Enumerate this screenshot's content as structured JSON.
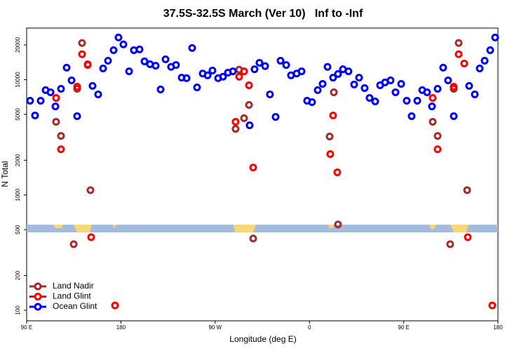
{
  "chart_data": {
    "type": "scatter",
    "title": "37.5S-32.5S March (Ver 10)   Inf to -Inf",
    "x_label": "Longitude (deg E)",
    "y_label": "N Total",
    "log_y": true,
    "legend": "bottom-left",
    "xlim": [
      90,
      540
    ],
    "ylim": [
      81,
      28000
    ],
    "xticks": [
      {
        "value": 90,
        "label": "90 E"
      },
      {
        "value": 180,
        "label": "180"
      },
      {
        "value": 270,
        "label": "90 W"
      },
      {
        "value": 360,
        "label": "0"
      },
      {
        "value": 450,
        "label": "90 E"
      },
      {
        "value": 540,
        "label": "180"
      }
    ],
    "yticks": [
      100,
      200,
      500,
      1000,
      2000,
      5000,
      10000,
      20000
    ],
    "series": [
      {
        "name": "Land Nadir",
        "color": "#a52a2a",
        "x": [
          118.1,
          122.8,
          134.9,
          138.2,
          142.9,
          148.3,
          150.9,
          289.5,
          292.9,
          297.6,
          302.3,
          306.3,
          379.3,
          383.3,
          387.3,
          477.7,
          482.4,
          494.4,
          497.8,
          502.5,
          510.6
        ],
        "values": [
          4310,
          3250,
          374,
          8330,
          20800,
          13600,
          1100,
          3740,
          12200,
          4630,
          6030,
          419,
          3210,
          7770,
          555,
          4310,
          3250,
          374,
          8330,
          20800,
          1100
        ]
      },
      {
        "name": "Land Glint",
        "color": "#ff0000",
        "x": [
          118.1,
          122.8,
          138.2,
          142.9,
          148.3,
          151.6,
          174.4,
          289.5,
          292.9,
          297.6,
          302.3,
          306.3,
          379.9,
          382.6,
          386.6,
          477.7,
          482.4,
          497.8,
          502.5,
          507.8,
          511.2,
          534.6
        ],
        "values": [
          6940,
          2490,
          8690,
          16600,
          13400,
          430,
          110,
          4310,
          10600,
          11800,
          8940,
          1730,
          2260,
          4890,
          1570,
          6940,
          2490,
          8690,
          16600,
          13800,
          430,
          110
        ]
      },
      {
        "name": "Ocean Glint",
        "color": "#0000ff",
        "x": [
          93.3,
          98.0,
          103.4,
          108.1,
          112.8,
          117.5,
          122.8,
          128.2,
          132.9,
          138.2,
          152.9,
          158.3,
          163.0,
          167.7,
          173.0,
          177.7,
          182.4,
          187.8,
          192.4,
          197.8,
          202.5,
          207.8,
          213.2,
          217.9,
          222.6,
          227.9,
          232.6,
          238.0,
          242.7,
          248.0,
          252.7,
          258.1,
          262.8,
          267.4,
          272.8,
          277.5,
          282.2,
          286.9,
          302.9,
          307.6,
          312.3,
          317.7,
          322.3,
          327.7,
          332.4,
          337.8,
          342.4,
          347.8,
          352.5,
          357.8,
          362.5,
          367.9,
          372.6,
          377.3,
          382.6,
          387.3,
          392.0,
          397.3,
          402.7,
          407.4,
          412.7,
          417.4,
          422.8,
          427.5,
          432.2,
          437.5,
          442.2,
          447.6,
          452.9,
          457.6,
          463.0,
          467.7,
          472.3,
          477.0,
          482.4,
          487.7,
          492.4,
          497.8,
          512.5,
          517.9,
          522.6,
          527.3,
          532.6,
          537.3
        ],
        "values": [
          6560,
          4890,
          6560,
          8110,
          7770,
          5860,
          8330,
          12700,
          9860,
          4820,
          8820,
          7450,
          12500,
          14600,
          18000,
          23200,
          20200,
          11800,
          18000,
          18300,
          14400,
          13600,
          13200,
          8220,
          15000,
          12900,
          13400,
          10400,
          10300,
          18800,
          8570,
          11300,
          10900,
          12000,
          10300,
          10600,
          11500,
          11800,
          4020,
          12300,
          14000,
          13100,
          7450,
          4750,
          14600,
          13400,
          10900,
          11300,
          11800,
          6560,
          6380,
          8110,
          9190,
          12900,
          10400,
          11200,
          12300,
          11800,
          9070,
          10400,
          8450,
          6940,
          6470,
          8940,
          9460,
          9860,
          7770,
          9190,
          6560,
          4820,
          6560,
          8110,
          7770,
          5860,
          8330,
          12700,
          9860,
          4820,
          8820,
          7450,
          12500,
          14600,
          18000,
          23200
        ]
      }
    ]
  }
}
